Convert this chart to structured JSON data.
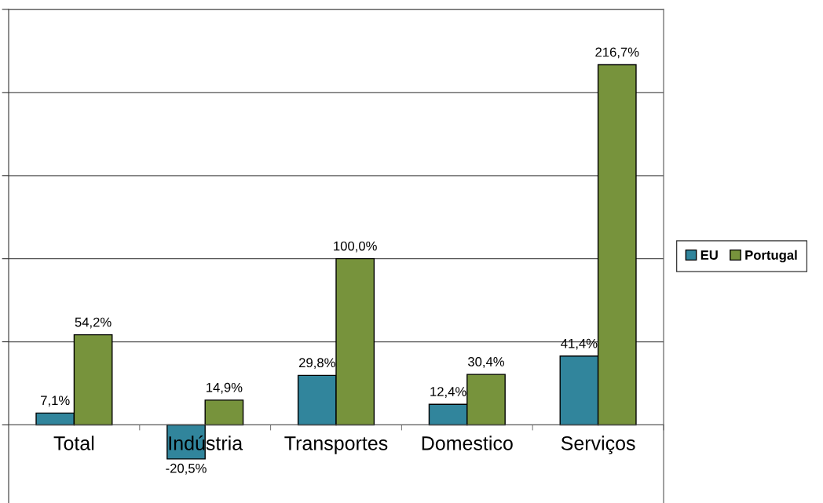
{
  "chart_data": {
    "type": "bar",
    "categories": [
      "Total",
      "Indústria",
      "Transportes",
      "Domestico",
      "Serviços"
    ],
    "series": [
      {
        "name": "EU",
        "color": "#31859c",
        "values": [
          7.1,
          -20.5,
          29.8,
          12.4,
          41.4
        ],
        "value_labels": [
          "7,1%",
          "-20,5%",
          "29,8%",
          "12,4%",
          "41,4%"
        ]
      },
      {
        "name": "Portugal",
        "color": "#77933c",
        "values": [
          54.2,
          14.9,
          100.0,
          30.4,
          216.7
        ],
        "value_labels": [
          "54,2%",
          "14,9%",
          "100,0%",
          "30,4%",
          "216,7%"
        ]
      }
    ],
    "ylim": [
      -47,
      250
    ],
    "yticks": [
      {
        "value": 0,
        "label": null
      },
      {
        "value": 50,
        "label": null
      },
      {
        "value": 100,
        "label": null
      },
      {
        "value": 150,
        "label": null
      },
      {
        "value": 200,
        "label": null
      },
      {
        "value": 250,
        "label": null
      }
    ],
    "tick_labels": "x",
    "grid": "y",
    "legend": "right"
  }
}
